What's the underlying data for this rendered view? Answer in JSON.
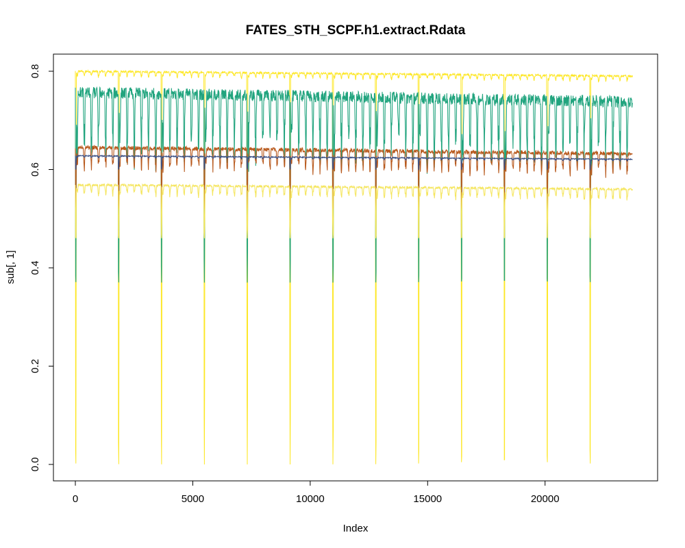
{
  "chart_data": {
    "type": "line",
    "title": "FATES_STH_SCPF.h1.extract.Rdata",
    "xlabel": "Index",
    "ylabel": "sub[, 1]",
    "xlim": [
      0,
      23800
    ],
    "ylim": [
      0,
      0.8
    ],
    "x_ticks": [
      0,
      5000,
      10000,
      15000,
      20000
    ],
    "x_tick_labels": [
      "0",
      "5000",
      "10000",
      "15000",
      "20000"
    ],
    "y_ticks": [
      0.0,
      0.2,
      0.4,
      0.6,
      0.8
    ],
    "y_tick_labels": [
      "0.0",
      "0.2",
      "0.4",
      "0.6",
      "0.8"
    ],
    "grid": false,
    "legend": "none",
    "dip_period": 1825,
    "n_points": 23725,
    "series": [
      {
        "key": "yellow_top",
        "color": "#fde725",
        "base_start": 0.8,
        "base_end": 0.79,
        "noise": 0.002,
        "seasonal_dip": 0.012,
        "annual_dip_to": 0.0,
        "thin": true
      },
      {
        "key": "teal",
        "color": "#21a47e",
        "base_start": 0.757,
        "base_end": 0.738,
        "noise": 0.012,
        "seasonal_dip": 0.15,
        "annual_dip_to": 0.37
      },
      {
        "key": "orange",
        "color": "#b85a1e",
        "base_start": 0.645,
        "base_end": 0.632,
        "noise": 0.004,
        "seasonal_dip": 0.05,
        "annual_dip_to": 0.52
      },
      {
        "key": "navy",
        "color": "#3b5186",
        "base_start": 0.628,
        "base_end": 0.621,
        "noise": 0.001,
        "seasonal_dip": 0.004,
        "annual_dip_to": 0.6
      },
      {
        "key": "yellow_low",
        "color": "#f5e660",
        "base_start": 0.569,
        "base_end": 0.56,
        "noise": 0.002,
        "seasonal_dip": 0.025,
        "annual_dip_to": 0.46
      }
    ]
  }
}
